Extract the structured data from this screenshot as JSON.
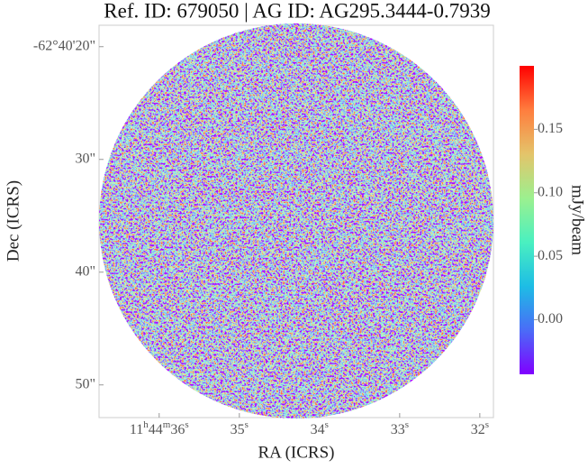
{
  "chart_data": {
    "type": "image",
    "title": "Ref. ID: 679050 | AG ID: AG295.3444-0.7939",
    "x_label": "RA (ICRS)",
    "y_label": "Dec (ICRS)",
    "xlim": [
      36.75,
      31.83
    ],
    "xticks": [
      {
        "value": 36,
        "label": "11h44m36s"
      },
      {
        "value": 35,
        "label": "35s"
      },
      {
        "value": 34,
        "label": "34s"
      },
      {
        "value": 33,
        "label": "33s"
      },
      {
        "value": 32,
        "label": "32s"
      }
    ],
    "ylim": [
      18.1,
      52.9
    ],
    "yticks": [
      {
        "value": 20,
        "label": "-62°40'20\""
      },
      {
        "value": 30,
        "label": "30\""
      },
      {
        "value": 40,
        "label": "40\""
      },
      {
        "value": 50,
        "label": "50\""
      }
    ],
    "colorbar": {
      "label": "mJy/beam",
      "colormap": "rainbow",
      "lim": [
        -0.043,
        0.2
      ],
      "ticks": [
        {
          "value": 0,
          "label": "0.00"
        },
        {
          "value": 0.05,
          "label": "0.05"
        },
        {
          "value": 0.1,
          "label": "0.10"
        },
        {
          "value": 0.15,
          "label": "0.15"
        }
      ]
    }
  }
}
